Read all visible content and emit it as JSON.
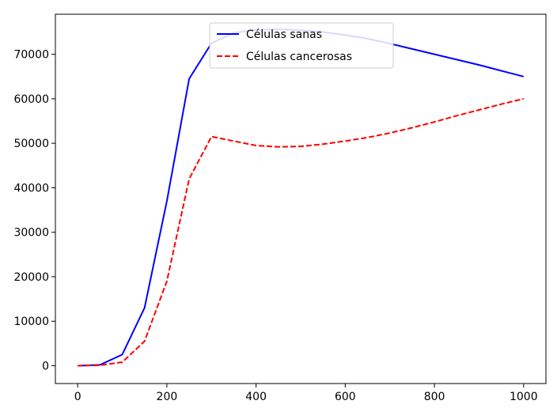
{
  "chart_data": {
    "type": "line",
    "title": "",
    "xlabel": "",
    "ylabel": "",
    "xlim": [
      -50,
      1050
    ],
    "ylim": [
      -4000,
      79000
    ],
    "xticks": [
      0,
      200,
      400,
      600,
      800,
      1000
    ],
    "yticks": [
      0,
      10000,
      20000,
      30000,
      40000,
      50000,
      60000,
      70000
    ],
    "grid": false,
    "legend_position": "top-center",
    "series": [
      {
        "name": "Células sanas",
        "color": "#0000ff",
        "style": "solid",
        "x": [
          0,
          50,
          100,
          150,
          200,
          250,
          300,
          350,
          400,
          450,
          500,
          550,
          600,
          650,
          700,
          750,
          800,
          850,
          900,
          950,
          1000
        ],
        "values": [
          0,
          200,
          2500,
          13000,
          37000,
          64500,
          72500,
          74800,
          75500,
          75600,
          75400,
          75000,
          74300,
          73500,
          72400,
          71200,
          70000,
          68800,
          67600,
          66300,
          65000
        ]
      },
      {
        "name": "Células cancerosas",
        "color": "#ff0000",
        "style": "dashed",
        "x": [
          0,
          50,
          100,
          150,
          200,
          250,
          300,
          350,
          400,
          450,
          500,
          550,
          600,
          650,
          700,
          750,
          800,
          850,
          900,
          950,
          1000
        ],
        "values": [
          0,
          100,
          800,
          5500,
          19000,
          42000,
          51500,
          50500,
          49500,
          49200,
          49300,
          49800,
          50500,
          51300,
          52300,
          53500,
          54800,
          56200,
          57500,
          58800,
          60000
        ]
      }
    ]
  }
}
